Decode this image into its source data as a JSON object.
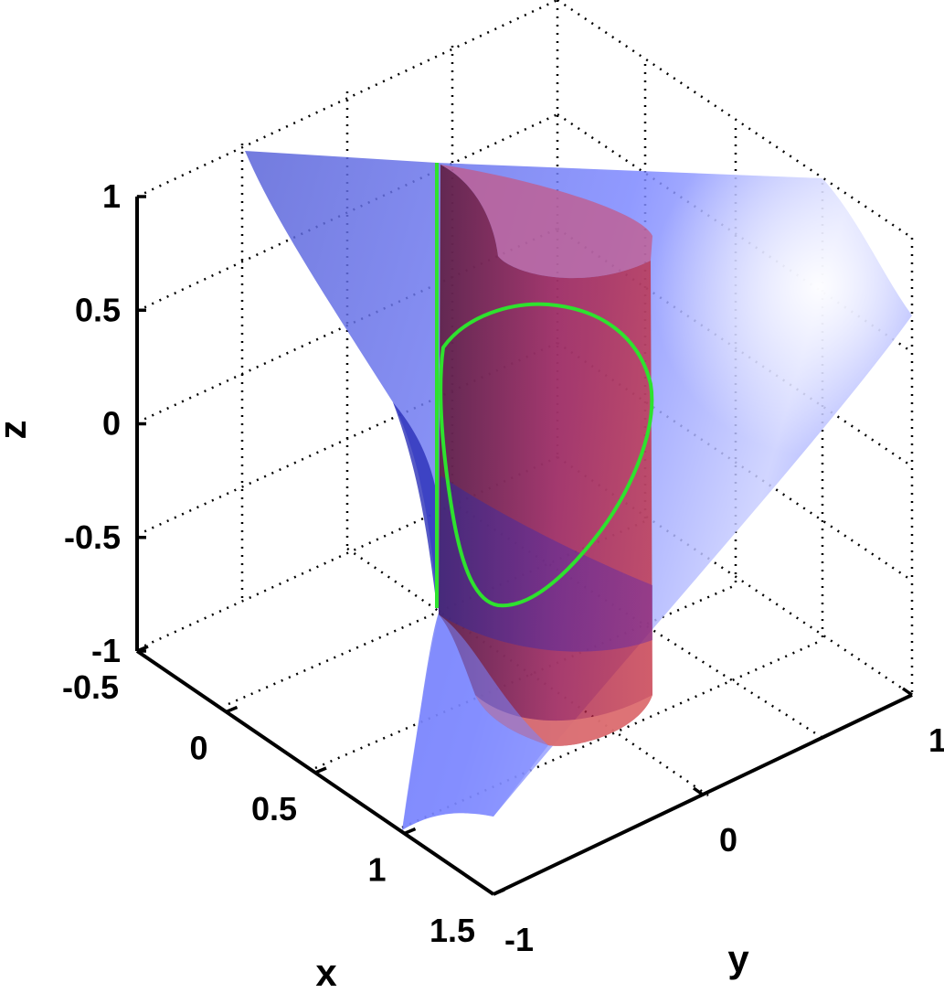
{
  "chart_data": {
    "type": "surface3d",
    "axes": {
      "x": {
        "label": "x",
        "range": [
          -0.5,
          1.5
        ],
        "ticks": [
          "-0.5",
          "0",
          "0.5",
          "1",
          "1.5"
        ]
      },
      "y": {
        "label": "y",
        "range": [
          -1,
          1
        ],
        "ticks": [
          "-1",
          "0",
          "1"
        ]
      },
      "z": {
        "label": "z",
        "range": [
          -1,
          1
        ],
        "ticks": [
          "-1",
          "-0.5",
          "0",
          "0.5",
          "1"
        ]
      }
    },
    "grid": true,
    "surfaces": [
      {
        "id": "blue-surface",
        "color": "#6f7cf5",
        "opacity": 0.85
      },
      {
        "id": "red-cylinder",
        "color": "#b0203a",
        "opacity": 0.75
      }
    ],
    "curves": [
      {
        "id": "green-vertical-line",
        "color": "#2ee22e"
      },
      {
        "id": "green-closed-curve",
        "color": "#2ee22e"
      }
    ]
  }
}
